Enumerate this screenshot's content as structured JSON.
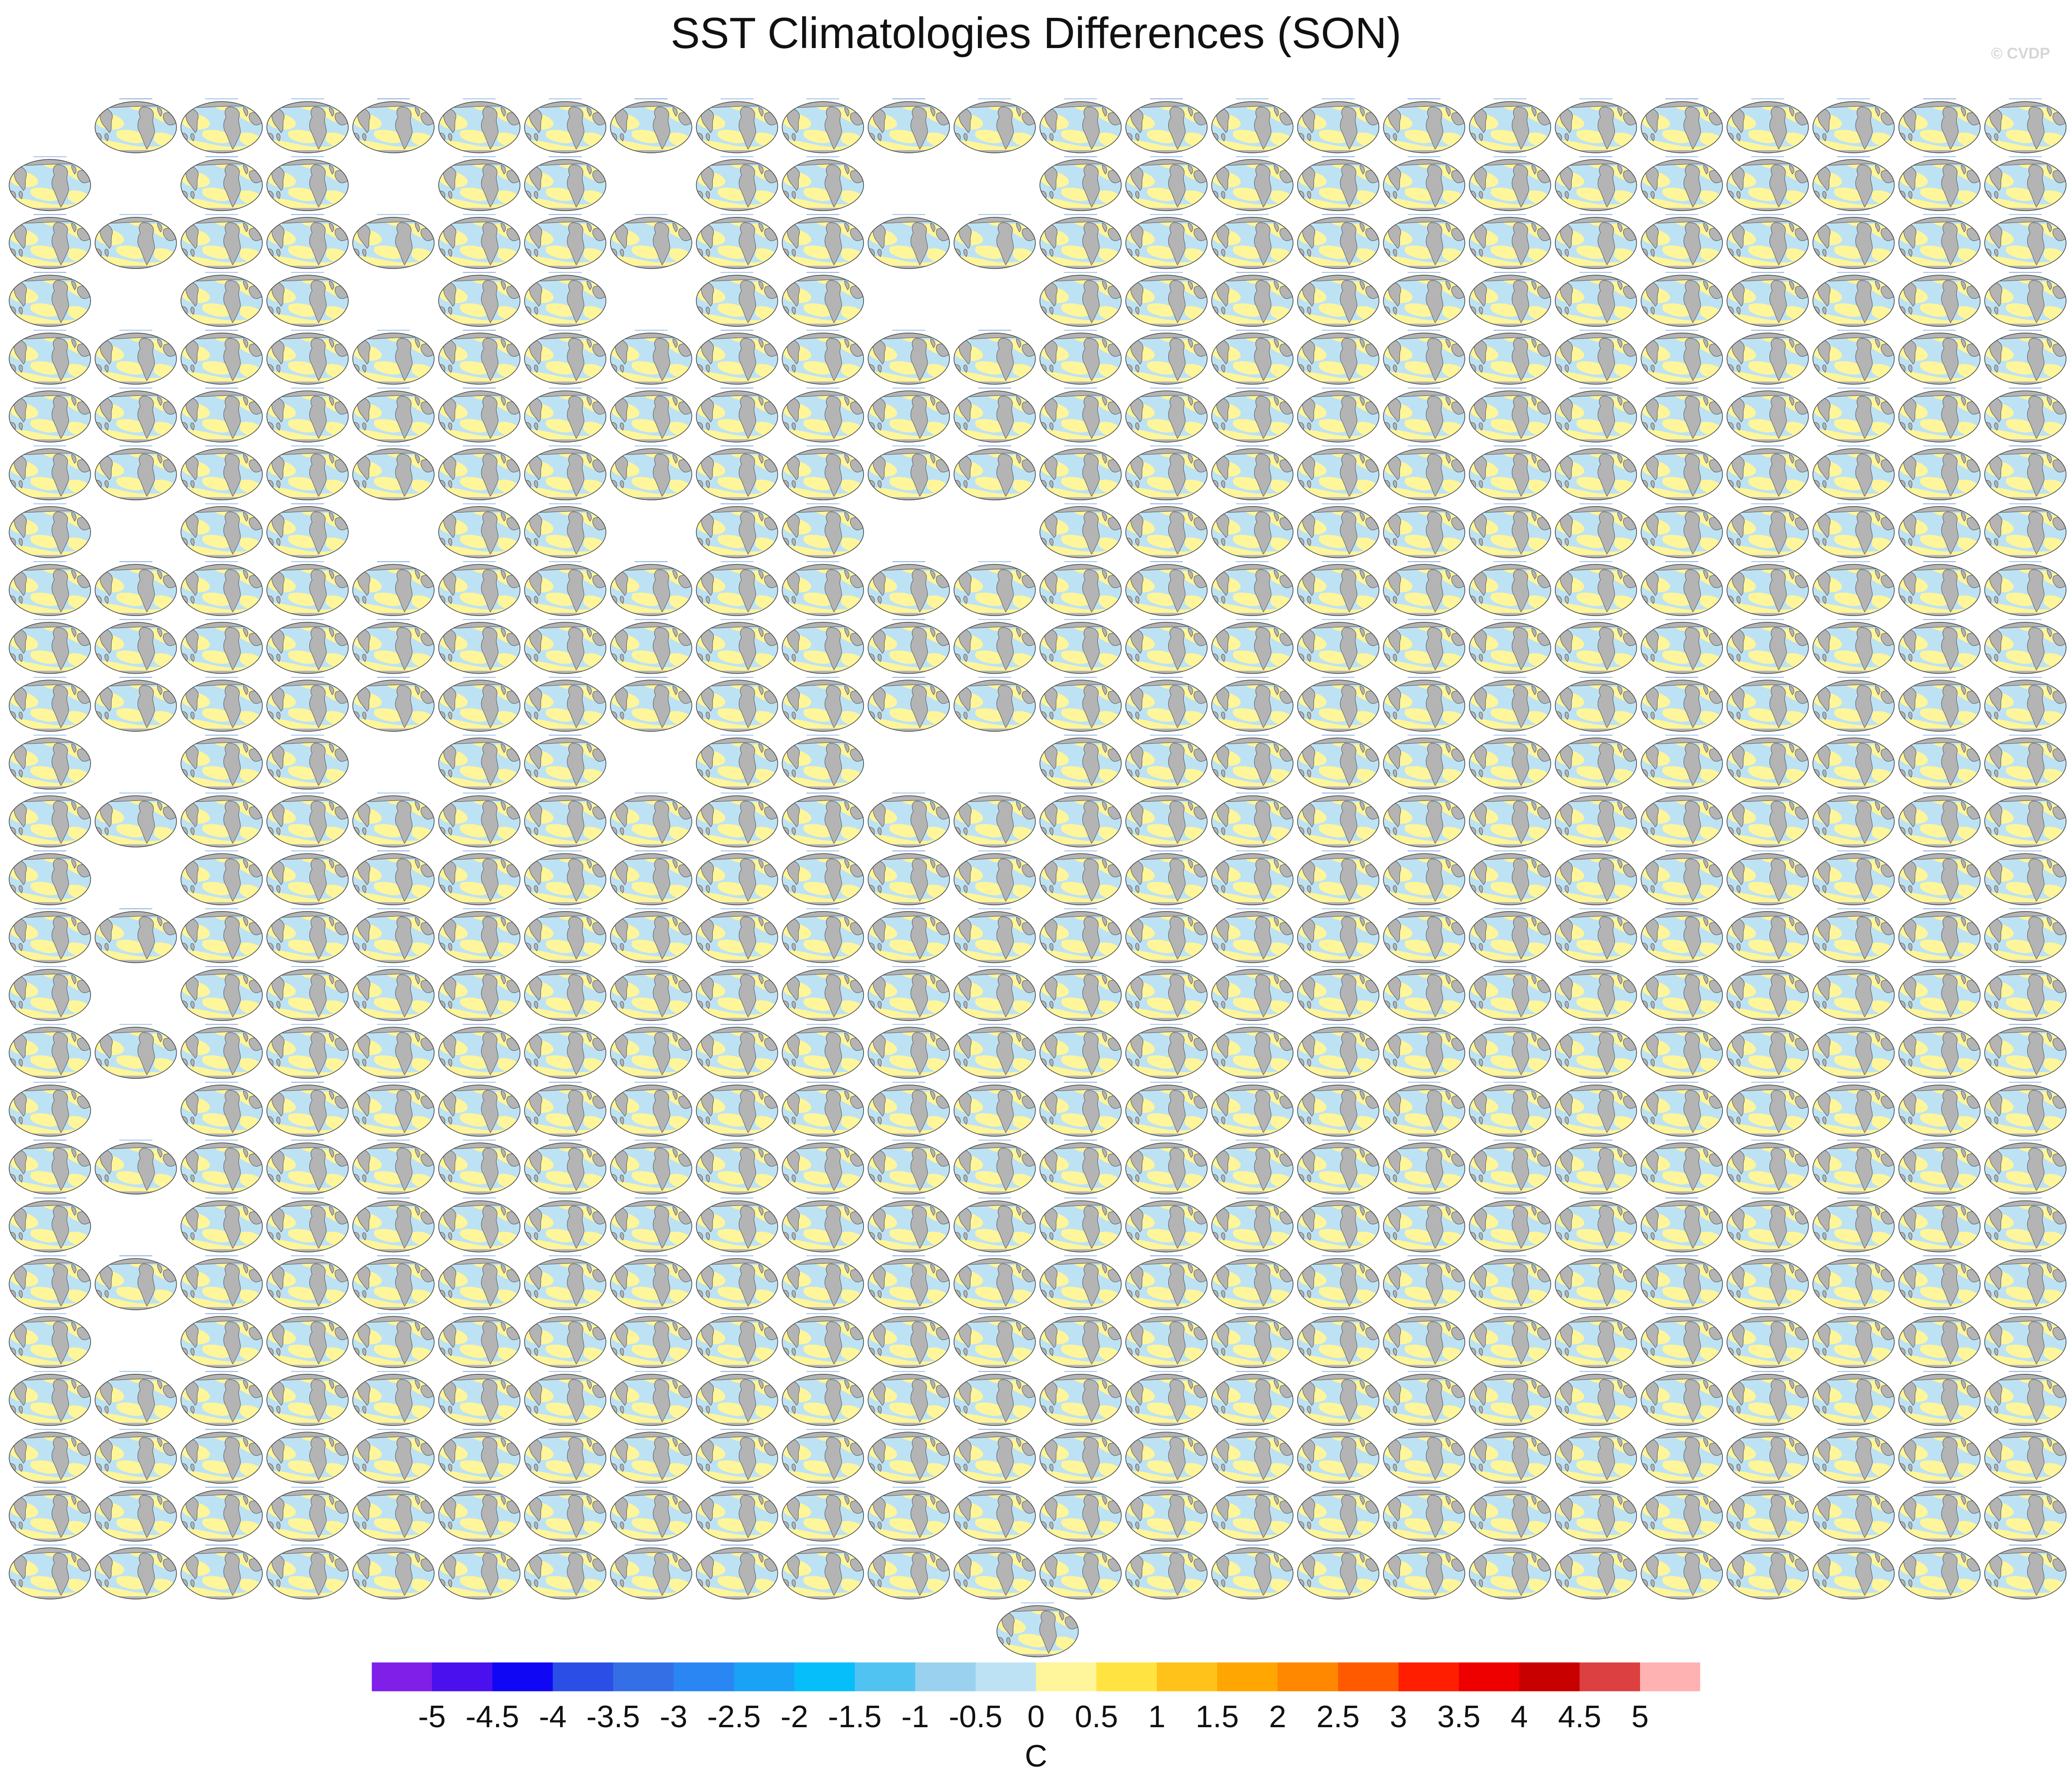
{
  "chart_data": {
    "type": "heatmap",
    "title": "SST Climatologies Differences (SON)",
    "copyright": "© CVDP",
    "panel_grid": {
      "columns": 24,
      "rows": 26,
      "missing_panels": {
        "0": [
          0
        ],
        "1": [
          1,
          4,
          7,
          10,
          11
        ],
        "3": [
          1,
          4,
          7,
          10,
          11
        ],
        "7": [
          1,
          4,
          7,
          10,
          11
        ],
        "11": [
          1,
          4,
          7,
          10,
          11
        ],
        "13": [
          1
        ],
        "15": [
          1
        ],
        "17": [
          1
        ],
        "19": [
          1
        ],
        "21": [
          1
        ]
      },
      "extra_last_row": {
        "count": 1,
        "column": 11.5
      }
    },
    "colorbar": {
      "label": "C",
      "tick_labels": [
        "-5",
        "-4.5",
        "-4",
        "-3.5",
        "-3",
        "-2.5",
        "-2",
        "-1.5",
        "-1",
        "-0.5",
        "0",
        "0.5",
        "1",
        "1.5",
        "2",
        "2.5",
        "3",
        "3.5",
        "4",
        "4.5",
        "5"
      ],
      "colors": [
        "#7f1fe8",
        "#4a10ee",
        "#1008f4",
        "#2a4ee6",
        "#356fe6",
        "#2a86f2",
        "#1aa2f6",
        "#06befa",
        "#51c3f3",
        "#9ad1ee",
        "#bde2f4",
        "#fff59a",
        "#ffe340",
        "#ffc21a",
        "#ffa602",
        "#ff8800",
        "#ff5a00",
        "#ff1e00",
        "#ee0000",
        "#c80000",
        "#dc4040",
        "#ffb2b2"
      ]
    },
    "map_colors": {
      "land": "#b4b4b4",
      "negative_anomaly": "#bde2f4",
      "positive_anomaly": "#fff59a",
      "coast": "#555555"
    }
  }
}
